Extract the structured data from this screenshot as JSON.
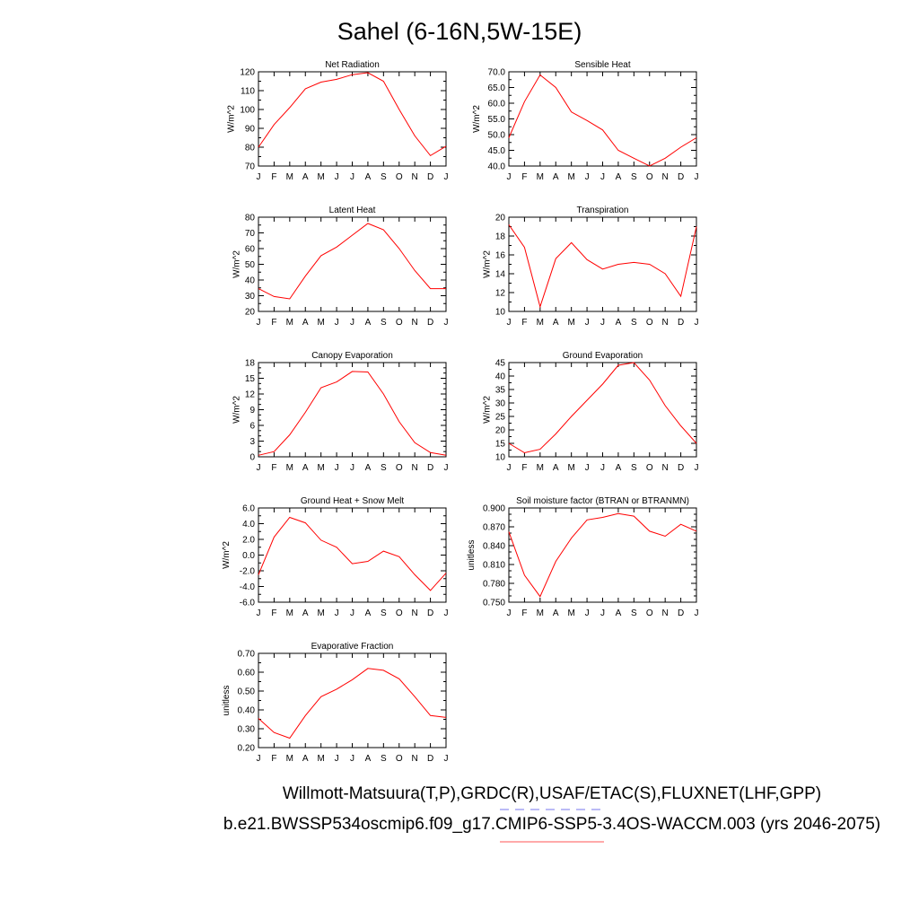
{
  "title": "Sahel (6-16N,5W-15E)",
  "legend": {
    "lines": [
      {
        "text": "Willmott-Matsuura(T,P),GRDC(R),USAF/ETAC(S),FLUXNET(LHF,GPP)",
        "color": "#7777ee",
        "style": "dashed"
      },
      {
        "text": "b.e21.BWSSP534oscmip6.f09_g17.CMIP6-SSP5-3.4OS-WACCM.003 (yrs 2046-2075)",
        "color": "#ff5555",
        "style": "solid"
      }
    ]
  },
  "colors": {
    "series": "#ff0000",
    "axis": "#000000"
  },
  "chart_data": [
    {
      "type": "line",
      "title": "Net Radiation",
      "ylabel": "W/m^2",
      "categories": [
        "J",
        "F",
        "M",
        "A",
        "M",
        "J",
        "J",
        "A",
        "S",
        "O",
        "N",
        "D",
        "J"
      ],
      "ylim": [
        70,
        120
      ],
      "yticks": [
        "70",
        "80",
        "90",
        "100",
        "110",
        "120"
      ],
      "yticks_num": [
        70,
        80,
        90,
        100,
        110,
        120
      ],
      "ytick_minor": 5,
      "values": [
        80,
        92,
        101,
        111,
        114.5,
        116,
        118.5,
        119.5,
        115,
        100,
        86,
        75.5,
        80.5
      ]
    },
    {
      "type": "line",
      "title": "Sensible Heat",
      "ylabel": "W/m^2",
      "categories": [
        "J",
        "F",
        "M",
        "A",
        "M",
        "J",
        "J",
        "A",
        "S",
        "O",
        "N",
        "D",
        "J"
      ],
      "ylim": [
        40,
        70
      ],
      "yticks": [
        "40.0",
        "45.0",
        "50.0",
        "55.0",
        "60.0",
        "65.0",
        "70.0"
      ],
      "yticks_num": [
        40,
        45,
        50,
        55,
        60,
        65,
        70
      ],
      "ytick_minor": 2.5,
      "values": [
        49,
        60.5,
        69,
        65,
        57.2,
        54.5,
        51.5,
        45,
        42.5,
        40,
        42.5,
        46,
        49
      ]
    },
    {
      "type": "line",
      "title": "Latent Heat",
      "ylabel": "W/m^2",
      "categories": [
        "J",
        "F",
        "M",
        "A",
        "M",
        "J",
        "J",
        "A",
        "S",
        "O",
        "N",
        "D",
        "J"
      ],
      "ylim": [
        20,
        80
      ],
      "yticks": [
        "20",
        "30",
        "40",
        "50",
        "60",
        "70",
        "80"
      ],
      "yticks_num": [
        20,
        30,
        40,
        50,
        60,
        70,
        80
      ],
      "ytick_minor": 5,
      "values": [
        34.5,
        29.5,
        28,
        42.5,
        55.5,
        61,
        68.5,
        76,
        72,
        60,
        46,
        34.5,
        34.5
      ]
    },
    {
      "type": "line",
      "title": "Transpiration",
      "ylabel": "W/m^2",
      "categories": [
        "J",
        "F",
        "M",
        "A",
        "M",
        "J",
        "J",
        "A",
        "S",
        "O",
        "N",
        "D",
        "J"
      ],
      "ylim": [
        10,
        20
      ],
      "yticks": [
        "10",
        "12",
        "14",
        "16",
        "18",
        "20"
      ],
      "yticks_num": [
        10,
        12,
        14,
        16,
        18,
        20
      ],
      "ytick_minor": 1,
      "values": [
        19.2,
        16.8,
        10.5,
        15.6,
        17.3,
        15.5,
        14.5,
        15,
        15.2,
        15,
        14,
        11.6,
        19
      ]
    },
    {
      "type": "line",
      "title": "Canopy Evaporation",
      "ylabel": "W/m^2",
      "categories": [
        "J",
        "F",
        "M",
        "A",
        "M",
        "J",
        "J",
        "A",
        "S",
        "O",
        "N",
        "D",
        "J"
      ],
      "ylim": [
        0,
        18
      ],
      "yticks": [
        "0",
        "3",
        "6",
        "9",
        "12",
        "15",
        "18"
      ],
      "yticks_num": [
        0,
        3,
        6,
        9,
        12,
        15,
        18
      ],
      "ytick_minor": 1,
      "values": [
        0.3,
        1,
        4.2,
        8.5,
        13.2,
        14.3,
        16.3,
        16.2,
        12,
        6.7,
        2.7,
        0.8,
        0.3
      ]
    },
    {
      "type": "line",
      "title": "Ground Evaporation",
      "ylabel": "W/m^2",
      "categories": [
        "J",
        "F",
        "M",
        "A",
        "M",
        "J",
        "J",
        "A",
        "S",
        "O",
        "N",
        "D",
        "J"
      ],
      "ylim": [
        10,
        45
      ],
      "yticks": [
        "10",
        "15",
        "20",
        "25",
        "30",
        "35",
        "40",
        "45"
      ],
      "yticks_num": [
        10,
        15,
        20,
        25,
        30,
        35,
        40,
        45
      ],
      "ytick_minor": 2.5,
      "values": [
        15,
        11.5,
        12.8,
        18.5,
        25,
        31,
        37,
        44,
        45,
        38.5,
        29,
        21.5,
        15
      ]
    },
    {
      "type": "line",
      "title": "Ground Heat + Snow Melt",
      "ylabel": "W/m^2",
      "categories": [
        "J",
        "F",
        "M",
        "A",
        "M",
        "J",
        "J",
        "A",
        "S",
        "O",
        "N",
        "D",
        "J"
      ],
      "ylim": [
        -6,
        6
      ],
      "yticks": [
        "-6.0",
        "-4.0",
        "-2.0",
        "0.0",
        "2.0",
        "4.0",
        "6.0"
      ],
      "yticks_num": [
        -6,
        -4,
        -2,
        0,
        2,
        4,
        6
      ],
      "ytick_minor": 1,
      "values": [
        -2.5,
        2.3,
        4.8,
        4.1,
        1.9,
        1,
        -1.1,
        -0.8,
        0.5,
        -0.2,
        -2.5,
        -4.5,
        -2.3
      ]
    },
    {
      "type": "line",
      "title": "Soil moisture factor (BTRAN or BTRANMN)",
      "ylabel": "unitless",
      "categories": [
        "J",
        "F",
        "M",
        "A",
        "M",
        "J",
        "J",
        "A",
        "S",
        "O",
        "N",
        "D",
        "J"
      ],
      "ylim": [
        0.75,
        0.9
      ],
      "yticks": [
        "0.750",
        "0.780",
        "0.810",
        "0.840",
        "0.870",
        "0.900"
      ],
      "yticks_num": [
        0.75,
        0.78,
        0.81,
        0.84,
        0.87,
        0.9
      ],
      "ytick_minor": 0.01,
      "values": [
        0.862,
        0.793,
        0.759,
        0.815,
        0.852,
        0.881,
        0.885,
        0.891,
        0.887,
        0.863,
        0.855,
        0.874,
        0.863
      ]
    },
    {
      "type": "line",
      "title": "Evaporative Fraction",
      "ylabel": "unitless",
      "categories": [
        "J",
        "F",
        "M",
        "A",
        "M",
        "J",
        "J",
        "A",
        "S",
        "O",
        "N",
        "D",
        "J"
      ],
      "ylim": [
        0.2,
        0.7
      ],
      "yticks": [
        "0.20",
        "0.30",
        "0.40",
        "0.50",
        "0.60",
        "0.70"
      ],
      "yticks_num": [
        0.2,
        0.3,
        0.4,
        0.5,
        0.6,
        0.7
      ],
      "ytick_minor": 0.05,
      "values": [
        0.355,
        0.28,
        0.25,
        0.37,
        0.47,
        0.51,
        0.56,
        0.62,
        0.61,
        0.565,
        0.47,
        0.37,
        0.36
      ]
    }
  ]
}
